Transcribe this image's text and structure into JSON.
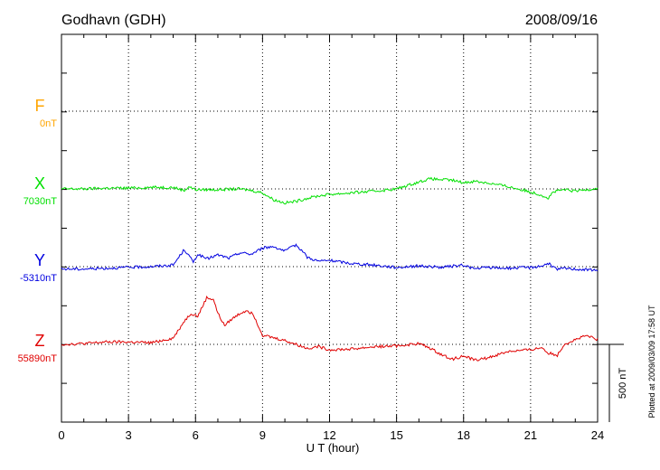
{
  "header": {
    "station": "Godhavn (GDH)",
    "date": "2008/09/16"
  },
  "footer": {
    "plotted_note": "Plotted at 2009/03/09 17:58 UT",
    "scale_label": "500 nT"
  },
  "chart_data": {
    "type": "line",
    "xlabel": "U T (hour)",
    "xlim": [
      0,
      24
    ],
    "xticks": [
      "0",
      "3",
      "6",
      "9",
      "12",
      "15",
      "18",
      "21",
      "24"
    ],
    "scale_bar_nT": 500,
    "grid": true,
    "series": [
      {
        "name": "F",
        "baseline_label": "0nT",
        "color": "#ffa500",
        "x": [],
        "values": []
      },
      {
        "name": "X",
        "baseline_label": "7030nT",
        "color": "#00e000",
        "x": [
          0,
          1,
          2,
          3,
          4,
          5,
          5.5,
          5.7,
          6,
          7,
          8,
          8.5,
          9,
          9.5,
          10,
          10.5,
          11,
          11.5,
          12,
          13,
          14,
          15,
          16,
          16.5,
          17,
          17.5,
          18,
          18.5,
          19,
          20,
          21,
          21.5,
          21.8,
          22,
          22.5,
          23,
          24
        ],
        "values": [
          0,
          0,
          5,
          5,
          10,
          10,
          -10,
          15,
          -5,
          -5,
          0,
          -10,
          -25,
          -70,
          -90,
          -80,
          -60,
          -45,
          -35,
          -25,
          -15,
          0,
          45,
          65,
          60,
          55,
          40,
          50,
          40,
          15,
          -20,
          -40,
          -60,
          -20,
          -5,
          -15,
          5
        ]
      },
      {
        "name": "Y",
        "baseline_label": "-5310nT",
        "color": "#0000e0",
        "x": [
          0,
          1,
          2,
          3,
          4,
          5,
          5.5,
          5.9,
          6.1,
          6.5,
          7,
          7.5,
          8,
          8.5,
          9,
          9.5,
          10,
          10.5,
          10.8,
          11,
          11.5,
          12,
          13,
          14,
          15,
          16,
          17,
          18,
          18.5,
          19,
          20,
          21,
          21.5,
          21.8,
          22.2,
          22.5,
          23,
          24
        ],
        "values": [
          -15,
          -15,
          -10,
          -5,
          0,
          10,
          110,
          30,
          80,
          50,
          75,
          55,
          90,
          80,
          120,
          130,
          100,
          140,
          100,
          60,
          35,
          40,
          20,
          10,
          -5,
          5,
          -5,
          10,
          -15,
          -5,
          -10,
          -5,
          5,
          20,
          -20,
          -10,
          -15,
          -25
        ]
      },
      {
        "name": "Z",
        "baseline_label": "55890nT",
        "color": "#e00000",
        "x": [
          0,
          1,
          2,
          3,
          4,
          4.5,
          5,
          5.5,
          5.8,
          6.1,
          6.5,
          6.8,
          7,
          7.3,
          7.6,
          8,
          8.3,
          8.6,
          9,
          10,
          10.5,
          11,
          11.5,
          12,
          13,
          14,
          15,
          16,
          16.5,
          17,
          17.5,
          18,
          18.5,
          19,
          20,
          21,
          21.5,
          21.8,
          22.2,
          22.5,
          23,
          23.5,
          24
        ],
        "values": [
          0,
          5,
          15,
          15,
          10,
          25,
          40,
          150,
          200,
          180,
          300,
          290,
          200,
          120,
          160,
          200,
          220,
          190,
          60,
          25,
          0,
          -25,
          -15,
          -35,
          -30,
          -15,
          -10,
          5,
          -25,
          -65,
          -95,
          -75,
          -100,
          -90,
          -45,
          -35,
          -20,
          -55,
          -70,
          0,
          30,
          55,
          30
        ]
      }
    ]
  }
}
